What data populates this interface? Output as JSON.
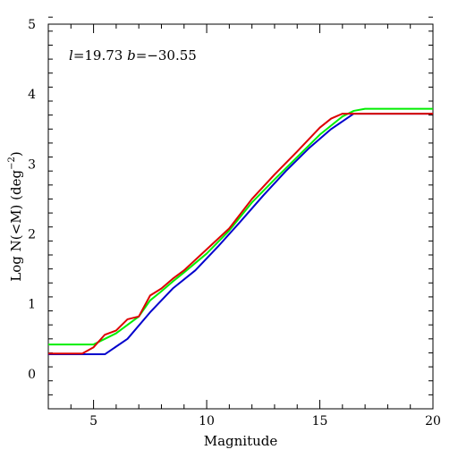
{
  "chart_data": {
    "type": "line",
    "title": "",
    "xlabel": "Magnitude",
    "ylabel_main": "Log N(<M) (deg",
    "ylabel_sup": "−2",
    "ylabel_close": ")",
    "xlim": [
      3,
      20
    ],
    "ylim": [
      -0.5,
      5
    ],
    "xticks": [
      5,
      10,
      15,
      20
    ],
    "yticks": [
      0,
      1,
      2,
      3,
      4,
      5
    ],
    "annotation": {
      "l_symbol": "l",
      "l_value": "=19.73",
      "b_symbol": "b",
      "b_value": "=−30.55"
    },
    "grid": false,
    "series": [
      {
        "color": "#0000cc",
        "x": [
          3,
          5.5,
          6.5,
          7.5,
          8.5,
          9.5,
          10.5,
          11.5,
          12.5,
          13.5,
          14.5,
          15.5,
          16.5,
          20
        ],
        "y": [
          0.28,
          0.28,
          0.5,
          0.88,
          1.22,
          1.48,
          1.82,
          2.18,
          2.55,
          2.9,
          3.22,
          3.5,
          3.72,
          3.72
        ]
      },
      {
        "color": "#00ee00",
        "x": [
          3,
          5,
          5.5,
          6,
          6.5,
          7,
          7.5,
          8,
          8.5,
          9,
          10,
          11,
          12,
          13,
          14,
          15,
          16,
          16.5,
          17,
          20
        ],
        "y": [
          0.42,
          0.42,
          0.5,
          0.58,
          0.7,
          0.82,
          1.05,
          1.18,
          1.32,
          1.45,
          1.72,
          2.05,
          2.45,
          2.78,
          3.1,
          3.42,
          3.68,
          3.76,
          3.79,
          3.79
        ]
      },
      {
        "color": "#dd0000",
        "x": [
          3,
          4.5,
          5,
          5.5,
          6,
          6.5,
          7,
          7.5,
          8,
          8.5,
          9,
          10,
          11,
          12,
          13,
          14,
          15,
          15.5,
          16,
          20
        ],
        "y": [
          0.29,
          0.29,
          0.38,
          0.56,
          0.62,
          0.78,
          0.82,
          1.12,
          1.22,
          1.36,
          1.48,
          1.78,
          2.08,
          2.5,
          2.85,
          3.18,
          3.52,
          3.65,
          3.72,
          3.72
        ]
      }
    ]
  }
}
